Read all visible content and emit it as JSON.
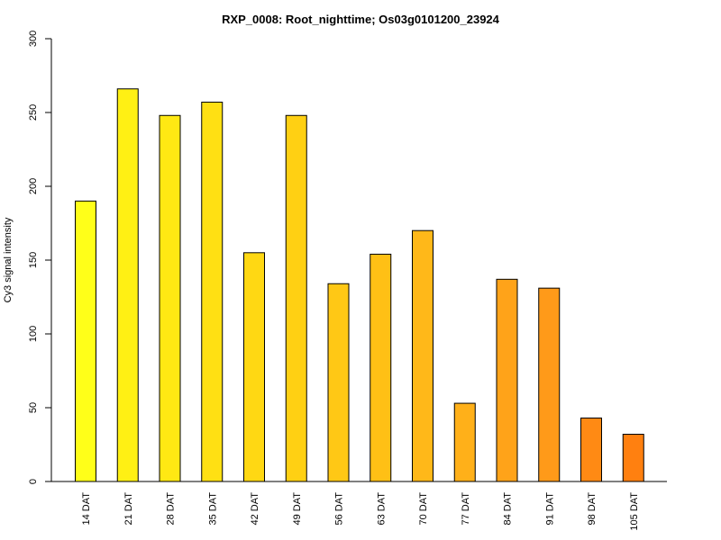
{
  "chart_data": {
    "type": "bar",
    "title": "RXP_0008: Root_nighttime; Os03g0101200_23924",
    "xlabel": "",
    "ylabel": "Cy3 signal intensity",
    "ylim": [
      0,
      300
    ],
    "yticks": [
      0,
      50,
      100,
      150,
      200,
      250,
      300
    ],
    "grid": false,
    "categories": [
      "14 DAT",
      "21 DAT",
      "28 DAT",
      "35 DAT",
      "42 DAT",
      "49 DAT",
      "56 DAT",
      "63 DAT",
      "70 DAT",
      "77 DAT",
      "84 DAT",
      "91 DAT",
      "98 DAT",
      "105 DAT"
    ],
    "values": [
      190,
      266,
      248,
      257,
      155,
      248,
      134,
      154,
      170,
      53,
      137,
      131,
      43,
      32
    ],
    "bar_colors": [
      "#FFFF19",
      "#FFF014",
      "#FFE813",
      "#FFE013",
      "#FFD813",
      "#FFD013",
      "#FFC815",
      "#FFC015",
      "#FFB819",
      "#FFB019",
      "#FFA319",
      "#FF9A19",
      "#FF8A14",
      "#FF8010"
    ]
  }
}
